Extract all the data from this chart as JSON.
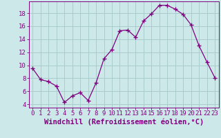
{
  "x": [
    0,
    1,
    2,
    3,
    4,
    5,
    6,
    7,
    8,
    9,
    10,
    11,
    12,
    13,
    14,
    15,
    16,
    17,
    18,
    19,
    20,
    21,
    22,
    23
  ],
  "y": [
    9.5,
    7.8,
    7.5,
    6.8,
    4.3,
    5.3,
    5.8,
    4.6,
    7.3,
    11.0,
    12.4,
    15.3,
    15.4,
    14.3,
    16.8,
    17.9,
    19.2,
    19.2,
    18.6,
    17.8,
    16.2,
    13.0,
    10.5,
    8.1
  ],
  "line_color": "#800080",
  "marker": "+",
  "bg_color": "#cce8e8",
  "grid_color": "#aacccc",
  "axis_color": "#800080",
  "tick_label_color": "#800080",
  "xlabel": "Windchill (Refroidissement éolien,°C)",
  "xlim": [
    -0.5,
    23.5
  ],
  "ylim": [
    3.5,
    19.8
  ],
  "yticks": [
    4,
    6,
    8,
    10,
    12,
    14,
    16,
    18
  ],
  "xticks": [
    0,
    1,
    2,
    3,
    4,
    5,
    6,
    7,
    8,
    9,
    10,
    11,
    12,
    13,
    14,
    15,
    16,
    17,
    18,
    19,
    20,
    21,
    22,
    23
  ],
  "font_size": 6.5,
  "xlabel_font_size": 7.5
}
